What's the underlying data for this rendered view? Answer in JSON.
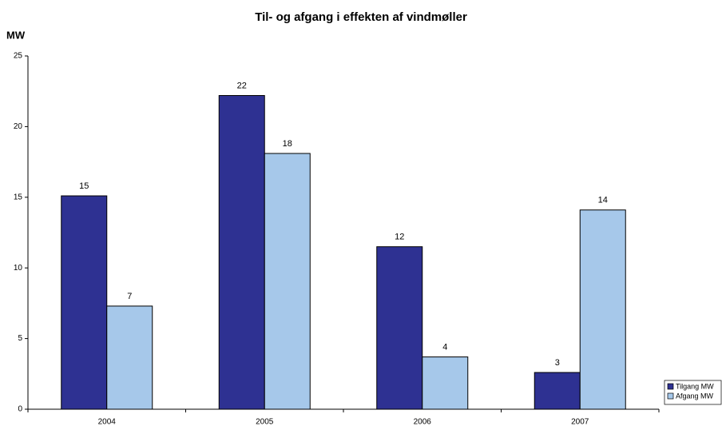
{
  "chart_data": {
    "type": "bar",
    "title": "Til- og afgang i effekten af vindmøller",
    "y_label": "MW",
    "categories": [
      "2004",
      "2005",
      "2006",
      "2007"
    ],
    "series": [
      {
        "name": "Tilgang MW",
        "color": "#2e3192",
        "values": [
          15.1,
          22.2,
          11.5,
          2.6
        ],
        "value_labels": [
          "15",
          "22",
          "12",
          "3"
        ]
      },
      {
        "name": "Afgang MW",
        "color": "#a6c8ea",
        "values": [
          7.3,
          18.1,
          3.7,
          14.1
        ],
        "value_labels": [
          "7",
          "18",
          "4",
          "14"
        ]
      }
    ],
    "ylim": [
      0,
      25
    ],
    "yticks": [
      0,
      5,
      10,
      15,
      20,
      25
    ],
    "grid": false,
    "legend": "bottom-right"
  }
}
